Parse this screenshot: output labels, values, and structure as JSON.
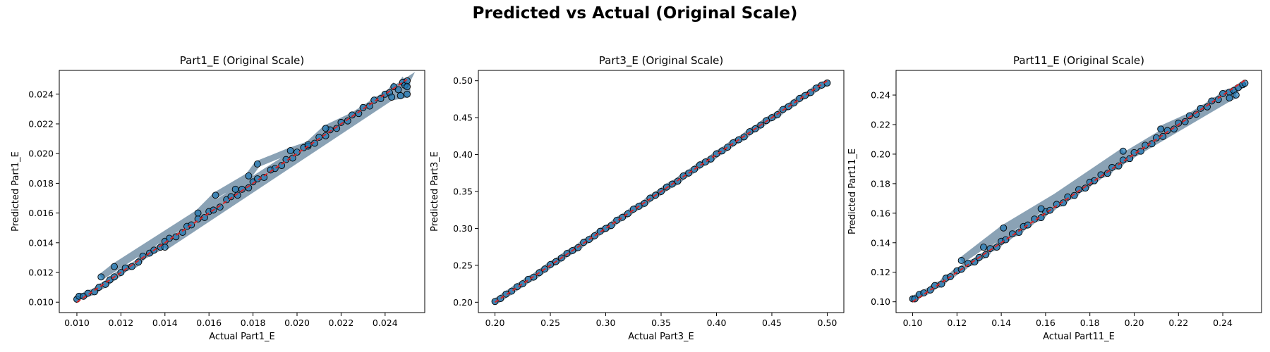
{
  "figure": {
    "suptitle": "Predicted vs Actual (Original Scale)"
  },
  "colors": {
    "points": "#1f77b4",
    "edge": "#000000",
    "ideal_line": "#d62728"
  },
  "chart_data": [
    {
      "type": "scatter",
      "title": "Part1_E (Original Scale)",
      "xlabel": "Actual Part1_E",
      "ylabel": "Predicted Part1_E",
      "xlim": [
        0.0092,
        0.0258
      ],
      "ylim": [
        0.0093,
        0.0256
      ],
      "xticks": [
        0.01,
        0.012,
        0.014,
        0.016,
        0.018,
        0.02,
        0.022,
        0.024
      ],
      "yticks": [
        0.01,
        0.012,
        0.014,
        0.016,
        0.018,
        0.02,
        0.022,
        0.024
      ],
      "x_tick_labels": [
        "0.010",
        "0.012",
        "0.014",
        "0.016",
        "0.018",
        "0.020",
        "0.022",
        "0.024"
      ],
      "y_tick_labels": [
        "0.010",
        "0.012",
        "0.014",
        "0.016",
        "0.018",
        "0.020",
        "0.022",
        "0.024"
      ],
      "ideal_line": [
        [
          0.01,
          0.01
        ],
        [
          0.025,
          0.025
        ]
      ],
      "series": [
        {
          "x": [
            0.01,
            0.0101,
            0.0103,
            0.0105,
            0.0108,
            0.011,
            0.0113,
            0.0115,
            0.0117,
            0.012,
            0.0122,
            0.0125,
            0.0128,
            0.013,
            0.0133,
            0.0135,
            0.0138,
            0.014,
            0.0142,
            0.0145,
            0.0148,
            0.015,
            0.0152,
            0.0155,
            0.0158,
            0.016,
            0.0162,
            0.0165,
            0.0168,
            0.017,
            0.0173,
            0.0175,
            0.0178,
            0.018,
            0.0182,
            0.0185,
            0.0188,
            0.019,
            0.0193,
            0.0195,
            0.0198,
            0.02,
            0.0203,
            0.0205,
            0.0208,
            0.021,
            0.0213,
            0.0215,
            0.0218,
            0.022,
            0.0223,
            0.0225,
            0.0228,
            0.023,
            0.0233,
            0.0235,
            0.0238,
            0.024,
            0.0242,
            0.0244,
            0.0246,
            0.0248,
            0.0249,
            0.025,
            0.0111,
            0.0117,
            0.0155,
            0.0163,
            0.0178,
            0.0182,
            0.0197,
            0.0205,
            0.0213,
            0.0243,
            0.0247,
            0.025,
            0.025,
            0.014,
            0.0172
          ],
          "y": [
            0.0102,
            0.0104,
            0.0104,
            0.0106,
            0.0107,
            0.011,
            0.0112,
            0.0115,
            0.0117,
            0.012,
            0.0123,
            0.0124,
            0.0127,
            0.0131,
            0.0133,
            0.0135,
            0.0137,
            0.0141,
            0.0143,
            0.0144,
            0.0147,
            0.0151,
            0.0152,
            0.0156,
            0.0157,
            0.0161,
            0.0162,
            0.0164,
            0.0169,
            0.0171,
            0.0172,
            0.0176,
            0.0177,
            0.0181,
            0.0183,
            0.0184,
            0.0189,
            0.019,
            0.0192,
            0.0196,
            0.0197,
            0.0201,
            0.0204,
            0.0205,
            0.0207,
            0.0211,
            0.0212,
            0.0216,
            0.0217,
            0.0221,
            0.0222,
            0.0226,
            0.0227,
            0.0231,
            0.0232,
            0.0236,
            0.0237,
            0.024,
            0.0241,
            0.0245,
            0.0243,
            0.0248,
            0.0246,
            0.0249,
            0.0117,
            0.0124,
            0.016,
            0.0172,
            0.0185,
            0.0193,
            0.0202,
            0.0206,
            0.0217,
            0.0238,
            0.0239,
            0.024,
            0.0245,
            0.0137,
            0.0176
          ]
        }
      ]
    },
    {
      "type": "scatter",
      "title": "Part3_E (Original Scale)",
      "xlabel": "Actual Part3_E",
      "ylabel": "Predicted Part3_E",
      "xlim": [
        0.185,
        0.515
      ],
      "ylim": [
        0.186,
        0.514
      ],
      "xticks": [
        0.2,
        0.25,
        0.3,
        0.35,
        0.4,
        0.45,
        0.5
      ],
      "yticks": [
        0.2,
        0.25,
        0.3,
        0.35,
        0.4,
        0.45,
        0.5
      ],
      "x_tick_labels": [
        "0.20",
        "0.25",
        "0.30",
        "0.35",
        "0.40",
        "0.45",
        "0.50"
      ],
      "y_tick_labels": [
        "0.20",
        "0.25",
        "0.30",
        "0.35",
        "0.40",
        "0.45",
        "0.50"
      ],
      "ideal_line": [
        [
          0.2,
          0.2
        ],
        [
          0.5,
          0.5
        ]
      ],
      "series": [
        {
          "x": [
            0.2,
            0.205,
            0.21,
            0.215,
            0.22,
            0.225,
            0.23,
            0.235,
            0.24,
            0.245,
            0.25,
            0.255,
            0.26,
            0.265,
            0.27,
            0.275,
            0.28,
            0.285,
            0.29,
            0.295,
            0.3,
            0.305,
            0.31,
            0.315,
            0.32,
            0.325,
            0.33,
            0.335,
            0.34,
            0.345,
            0.35,
            0.355,
            0.36,
            0.365,
            0.37,
            0.375,
            0.38,
            0.385,
            0.39,
            0.395,
            0.4,
            0.405,
            0.41,
            0.415,
            0.42,
            0.425,
            0.43,
            0.435,
            0.44,
            0.445,
            0.45,
            0.455,
            0.46,
            0.465,
            0.47,
            0.475,
            0.48,
            0.485,
            0.49,
            0.495,
            0.5
          ],
          "y": [
            0.201,
            0.205,
            0.211,
            0.215,
            0.221,
            0.225,
            0.231,
            0.234,
            0.24,
            0.245,
            0.251,
            0.255,
            0.26,
            0.266,
            0.27,
            0.274,
            0.281,
            0.285,
            0.29,
            0.296,
            0.3,
            0.304,
            0.311,
            0.315,
            0.32,
            0.326,
            0.33,
            0.334,
            0.341,
            0.345,
            0.35,
            0.356,
            0.36,
            0.364,
            0.371,
            0.375,
            0.38,
            0.386,
            0.39,
            0.394,
            0.401,
            0.405,
            0.41,
            0.416,
            0.42,
            0.424,
            0.431,
            0.435,
            0.44,
            0.446,
            0.45,
            0.454,
            0.461,
            0.465,
            0.47,
            0.476,
            0.48,
            0.484,
            0.49,
            0.494,
            0.497
          ]
        }
      ]
    },
    {
      "type": "scatter",
      "title": "Part11_E (Original Scale)",
      "xlabel": "Actual Part11_E",
      "ylabel": "Predicted Part11_E",
      "xlim": [
        0.0925,
        0.2575
      ],
      "ylim": [
        0.0927,
        0.2567
      ],
      "xticks": [
        0.1,
        0.12,
        0.14,
        0.16,
        0.18,
        0.2,
        0.22,
        0.24
      ],
      "yticks": [
        0.1,
        0.12,
        0.14,
        0.16,
        0.18,
        0.2,
        0.22,
        0.24
      ],
      "x_tick_labels": [
        "0.10",
        "0.12",
        "0.14",
        "0.16",
        "0.18",
        "0.20",
        "0.22",
        "0.24"
      ],
      "y_tick_labels": [
        "0.10",
        "0.12",
        "0.14",
        "0.16",
        "0.18",
        "0.20",
        "0.22",
        "0.24"
      ],
      "ideal_line": [
        [
          0.1,
          0.1
        ],
        [
          0.25,
          0.25
        ]
      ],
      "series": [
        {
          "x": [
            0.1,
            0.101,
            0.103,
            0.105,
            0.108,
            0.11,
            0.113,
            0.115,
            0.117,
            0.12,
            0.122,
            0.125,
            0.128,
            0.13,
            0.133,
            0.135,
            0.138,
            0.14,
            0.142,
            0.145,
            0.148,
            0.15,
            0.152,
            0.155,
            0.158,
            0.16,
            0.162,
            0.165,
            0.168,
            0.17,
            0.173,
            0.175,
            0.178,
            0.18,
            0.182,
            0.185,
            0.188,
            0.19,
            0.193,
            0.195,
            0.198,
            0.2,
            0.203,
            0.205,
            0.208,
            0.21,
            0.213,
            0.215,
            0.218,
            0.22,
            0.223,
            0.225,
            0.228,
            0.23,
            0.233,
            0.235,
            0.238,
            0.24,
            0.243,
            0.245,
            0.247,
            0.249,
            0.25,
            0.141,
            0.122,
            0.195,
            0.132,
            0.158,
            0.243,
            0.246,
            0.212
          ],
          "y": [
            0.102,
            0.102,
            0.105,
            0.106,
            0.108,
            0.111,
            0.112,
            0.116,
            0.117,
            0.121,
            0.122,
            0.126,
            0.127,
            0.13,
            0.132,
            0.136,
            0.137,
            0.141,
            0.142,
            0.146,
            0.147,
            0.151,
            0.152,
            0.156,
            0.157,
            0.161,
            0.162,
            0.166,
            0.167,
            0.171,
            0.172,
            0.176,
            0.177,
            0.181,
            0.182,
            0.186,
            0.187,
            0.191,
            0.192,
            0.196,
            0.197,
            0.201,
            0.202,
            0.206,
            0.207,
            0.211,
            0.212,
            0.216,
            0.217,
            0.221,
            0.222,
            0.226,
            0.227,
            0.231,
            0.232,
            0.236,
            0.237,
            0.241,
            0.242,
            0.243,
            0.245,
            0.247,
            0.248,
            0.15,
            0.128,
            0.202,
            0.137,
            0.163,
            0.238,
            0.24,
            0.217
          ]
        }
      ]
    }
  ]
}
